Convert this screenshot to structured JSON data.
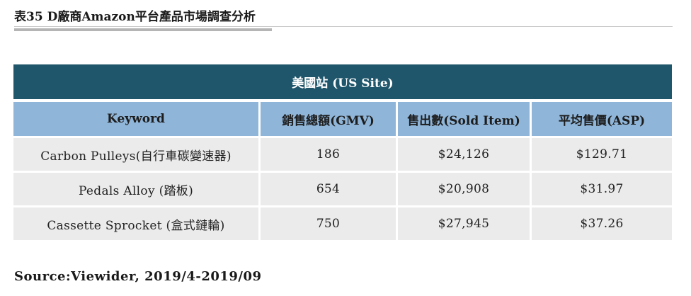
{
  "document": {
    "title": "表35 D廠商Amazon平台產品市場調查分析",
    "source": "Source:Viewider, 2019/4-2019/09"
  },
  "table": {
    "site_header": "美國站 (US Site)",
    "columns": [
      "Keyword",
      "銷售總額(GMV)",
      "售出數(Sold Item)",
      "平均售價(ASP)"
    ],
    "rows": [
      [
        "Carbon Pulleys(自行車碳變速器)",
        "186",
        "$24,126",
        "$129.71"
      ],
      [
        "Pedals Alloy (踏板)",
        "654",
        "$20,908",
        "$31.97"
      ],
      [
        "Cassette Sprocket (盒式鏈輪)",
        "750",
        "$27,945",
        "$37.26"
      ]
    ]
  },
  "colors": {
    "site_header_bg": "#1f566b",
    "column_header_bg": "#8fb5d9",
    "row_bg": "#ebebeb"
  }
}
